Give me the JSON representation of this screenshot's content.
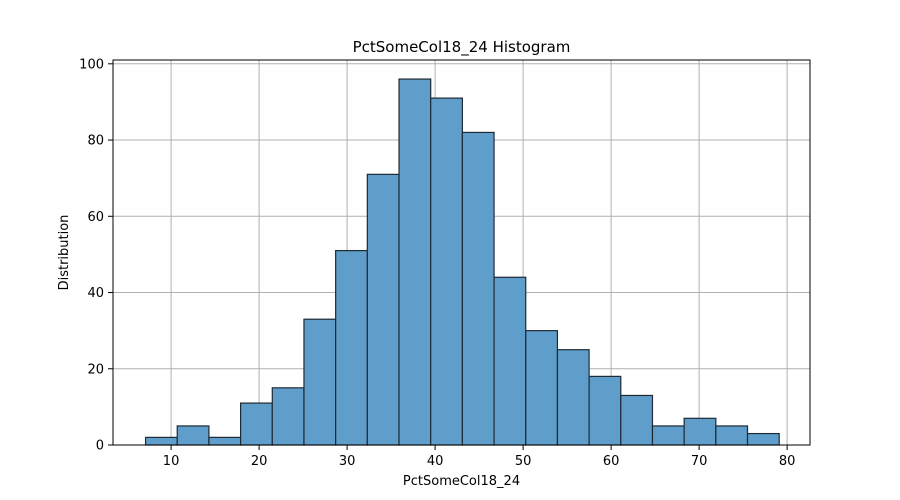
{
  "chart_data": {
    "type": "bar",
    "subtype": "histogram",
    "title": "PctSomeCol18_24 Histogram",
    "xlabel": "PctSomeCol18_24",
    "ylabel": "Distribution",
    "xlim": [
      3.4,
      82.6
    ],
    "ylim": [
      0,
      101
    ],
    "xticks": [
      10,
      20,
      30,
      40,
      50,
      60,
      70,
      80
    ],
    "yticks": [
      0,
      20,
      40,
      60,
      80,
      100
    ],
    "grid": true,
    "bar_color": "#5f9ecb",
    "edge_color": "#1f2a33",
    "bins": [
      {
        "start": 7.1,
        "end": 10.7,
        "count": 2
      },
      {
        "start": 10.7,
        "end": 14.3,
        "count": 5
      },
      {
        "start": 14.3,
        "end": 17.9,
        "count": 2
      },
      {
        "start": 17.9,
        "end": 21.5,
        "count": 11
      },
      {
        "start": 21.5,
        "end": 25.1,
        "count": 15
      },
      {
        "start": 25.1,
        "end": 28.7,
        "count": 33
      },
      {
        "start": 28.7,
        "end": 32.3,
        "count": 51
      },
      {
        "start": 32.3,
        "end": 35.9,
        "count": 71
      },
      {
        "start": 35.9,
        "end": 39.5,
        "count": 96
      },
      {
        "start": 39.5,
        "end": 43.1,
        "count": 91
      },
      {
        "start": 43.1,
        "end": 46.7,
        "count": 82
      },
      {
        "start": 46.7,
        "end": 50.3,
        "count": 44
      },
      {
        "start": 50.3,
        "end": 53.9,
        "count": 30
      },
      {
        "start": 53.9,
        "end": 57.5,
        "count": 25
      },
      {
        "start": 57.5,
        "end": 61.1,
        "count": 18
      },
      {
        "start": 61.1,
        "end": 64.7,
        "count": 13
      },
      {
        "start": 64.7,
        "end": 68.3,
        "count": 5
      },
      {
        "start": 68.3,
        "end": 71.9,
        "count": 7
      },
      {
        "start": 71.9,
        "end": 75.5,
        "count": 5
      },
      {
        "start": 75.5,
        "end": 79.1,
        "count": 3
      }
    ]
  }
}
